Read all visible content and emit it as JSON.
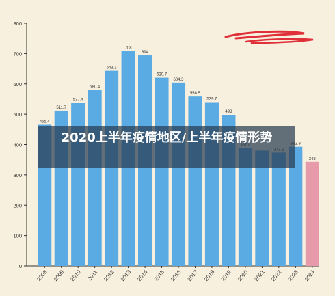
{
  "banner": {
    "title": "2020上半年疫情地区/上半年疫情形势"
  },
  "colors": {
    "background": "#f8f0de",
    "bar": "#5aaae3",
    "highlight": "#e79aaa",
    "scribble": "#e0303a"
  },
  "chart_data": {
    "type": "bar",
    "categories": [
      "2008",
      "2009",
      "2010",
      "2011",
      "2012",
      "2013",
      "2014",
      "2015",
      "2016",
      "2017",
      "2018",
      "2019",
      "2020",
      "2021",
      "2022",
      "2023",
      "2024"
    ],
    "values": [
      465.4,
      511.7,
      537.4,
      580.4,
      643.1,
      708,
      694,
      620.7,
      604.3,
      558.5,
      539.7,
      498,
      387.9,
      380,
      373.2,
      392.8,
      343
    ],
    "data_labels": [
      "465.4",
      "511.7",
      "537.4",
      "580.4",
      "643.1",
      "708",
      "694",
      "620.7",
      "604.3",
      "558.5",
      "539.7",
      "498",
      "387.9",
      "",
      "373.2",
      "392.8",
      "343"
    ],
    "highlight_index": 16,
    "ylim": [
      0,
      800
    ],
    "yticks": [
      0,
      100,
      200,
      300,
      400,
      500,
      600,
      700,
      800
    ],
    "ylabel": "",
    "xlabel": "",
    "grid": false,
    "legend": "none"
  }
}
